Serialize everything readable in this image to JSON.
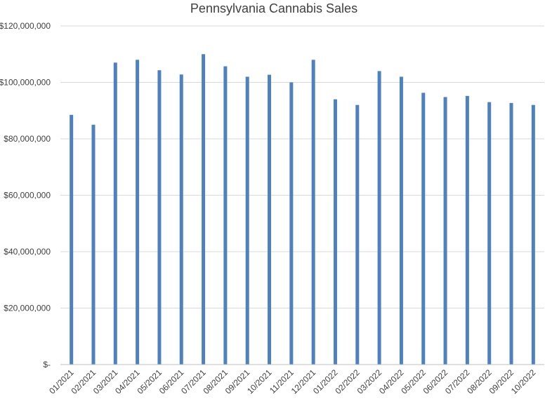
{
  "chart_data": {
    "type": "bar",
    "title": "Pennsylvania Cannabis Sales",
    "xlabel": "",
    "ylabel": "",
    "categories": [
      "01/2021",
      "02/2021",
      "03/2021",
      "04/2021",
      "05/2021",
      "06/2021",
      "07/2021",
      "08/2021",
      "09/2021",
      "10/2021",
      "11/2021",
      "12/2021",
      "01/2022",
      "02/2022",
      "03/2022",
      "04/2022",
      "05/2022",
      "06/2022",
      "07/2022",
      "08/2022",
      "09/2022",
      "10/2022"
    ],
    "values": [
      88500000,
      85000000,
      107000000,
      108000000,
      104300000,
      102800000,
      110000000,
      105700000,
      102000000,
      102700000,
      100000000,
      108000000,
      94000000,
      92000000,
      104000000,
      102000000,
      96300000,
      94800000,
      95200000,
      93000000,
      92700000,
      92000000
    ],
    "ylim": [
      0,
      120000000
    ],
    "yticks": [
      0,
      20000000,
      40000000,
      60000000,
      80000000,
      100000000,
      120000000
    ],
    "ytick_labels": [
      "$-",
      "$20,000,000",
      "$40,000,000",
      "$60,000,000",
      "$80,000,000",
      "$100,000,000",
      "$120,000,000"
    ],
    "grid": true,
    "bar_color": "#4f81bd"
  }
}
